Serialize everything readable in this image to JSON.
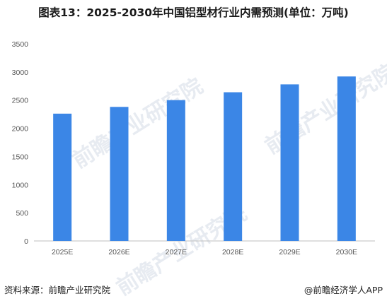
{
  "title": "图表13：2025-2030年中国铝型材行业内需预测(单位：万吨)",
  "source": "资料来源：前瞻产业研究院",
  "brand": "@前瞻经济学人APP",
  "watermark": "前瞻产业研究院",
  "colors": {
    "bar": "#3b86e6",
    "axis": "#bfbfbf"
  },
  "chart_data": {
    "type": "bar",
    "categories": [
      "2025E",
      "2026E",
      "2027E",
      "2028E",
      "2029E",
      "2030E"
    ],
    "values": [
      2260,
      2380,
      2500,
      2640,
      2780,
      2920
    ],
    "ylim": [
      0,
      3500
    ],
    "yticks": [
      0,
      500,
      1000,
      1500,
      2000,
      2500,
      3000,
      3500
    ],
    "title": "",
    "xlabel": "",
    "ylabel": "",
    "grid": false
  }
}
